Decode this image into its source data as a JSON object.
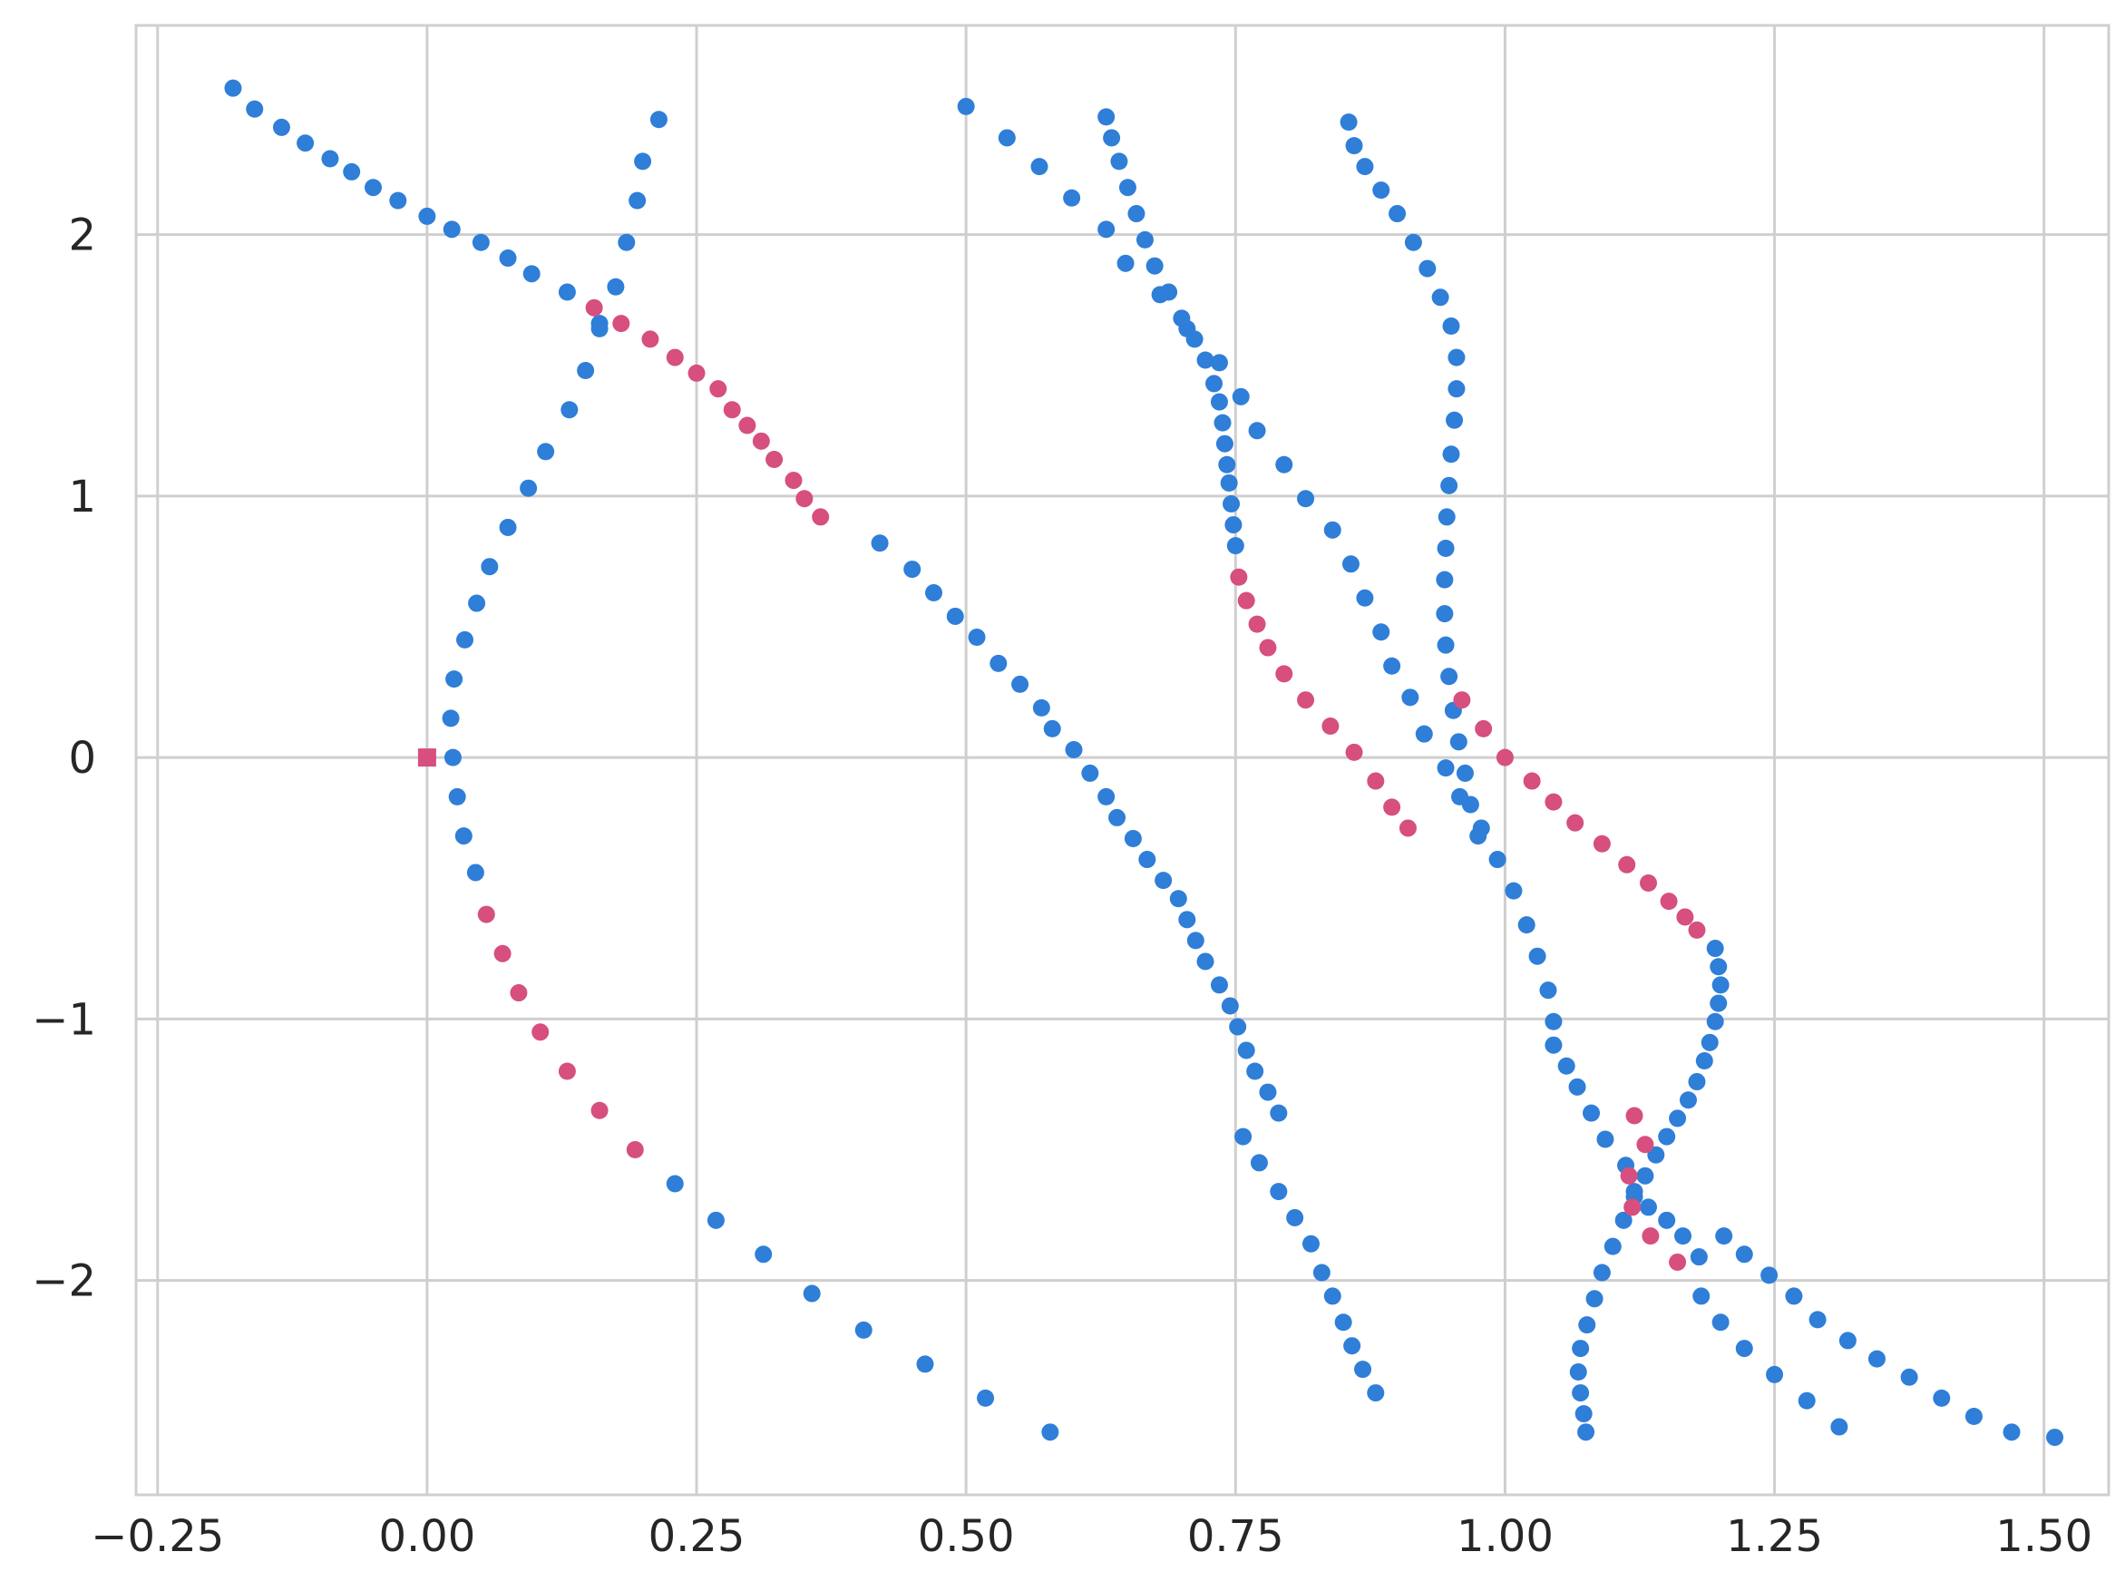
{
  "chart_data": {
    "type": "scatter",
    "title": "",
    "xlabel": "",
    "ylabel": "",
    "xlim": [
      -0.27,
      1.56
    ],
    "ylim": [
      -2.82,
      2.8
    ],
    "grid": true,
    "legend": "none",
    "x_ticks": [
      -0.25,
      0.0,
      0.25,
      0.5,
      0.75,
      1.0,
      1.25,
      1.5
    ],
    "x_tick_labels": [
      "−0.25",
      "0.00",
      "0.25",
      "0.50",
      "0.75",
      "1.00",
      "1.25",
      "1.50"
    ],
    "y_ticks": [
      -2,
      -1,
      0,
      1,
      2
    ],
    "y_tick_labels": [
      "−2",
      "−1",
      "0",
      "1",
      "2"
    ],
    "colors": {
      "blue": "#2f7ed8",
      "pink": "#d64f7e",
      "grid": "#cfcfcf",
      "text": "#262626"
    },
    "series": [
      {
        "color": "blue",
        "marker": "circle",
        "points": [
          [
            -0.18,
            2.56
          ],
          [
            -0.16,
            2.48
          ],
          [
            -0.135,
            2.41
          ],
          [
            -0.113,
            2.35
          ],
          [
            -0.09,
            2.29
          ],
          [
            -0.07,
            2.24
          ],
          [
            -0.05,
            2.18
          ],
          [
            -0.027,
            2.13
          ],
          [
            0.0,
            2.07
          ],
          [
            0.023,
            2.02
          ],
          [
            0.05,
            1.97
          ],
          [
            0.075,
            1.91
          ],
          [
            0.097,
            1.85
          ],
          [
            0.13,
            1.78
          ],
          [
            0.16,
            1.66
          ],
          [
            0.215,
            2.44
          ],
          [
            0.2,
            2.28
          ],
          [
            0.195,
            2.13
          ],
          [
            0.185,
            1.97
          ],
          [
            0.175,
            1.8
          ],
          [
            0.16,
            1.64
          ],
          [
            0.147,
            1.48
          ],
          [
            0.132,
            1.33
          ],
          [
            0.11,
            1.17
          ],
          [
            0.094,
            1.03
          ],
          [
            0.075,
            0.88
          ],
          [
            0.058,
            0.73
          ],
          [
            0.046,
            0.59
          ],
          [
            0.035,
            0.45
          ],
          [
            0.025,
            0.3
          ],
          [
            0.022,
            0.15
          ],
          [
            0.024,
            0.0
          ],
          [
            0.028,
            -0.15
          ],
          [
            0.034,
            -0.3
          ],
          [
            0.045,
            -0.44
          ],
          [
            0.23,
            -1.63
          ],
          [
            0.268,
            -1.77
          ],
          [
            0.312,
            -1.9
          ],
          [
            0.357,
            -2.05
          ],
          [
            0.405,
            -2.19
          ],
          [
            0.462,
            -2.32
          ],
          [
            0.518,
            -2.45
          ],
          [
            0.578,
            -2.58
          ],
          [
            0.5,
            2.49
          ],
          [
            0.538,
            2.37
          ],
          [
            0.568,
            2.26
          ],
          [
            0.598,
            2.14
          ],
          [
            0.63,
            2.02
          ],
          [
            0.648,
            1.89
          ],
          [
            0.68,
            1.77
          ],
          [
            0.705,
            1.64
          ],
          [
            0.735,
            1.51
          ],
          [
            0.755,
            1.38
          ],
          [
            0.77,
            1.25
          ],
          [
            0.795,
            1.12
          ],
          [
            0.815,
            0.99
          ],
          [
            0.84,
            0.87
          ],
          [
            0.857,
            0.74
          ],
          [
            0.87,
            0.61
          ],
          [
            0.885,
            0.48
          ],
          [
            0.895,
            0.35
          ],
          [
            0.912,
            0.23
          ],
          [
            0.925,
            0.09
          ],
          [
            0.945,
            -0.04
          ],
          [
            0.958,
            -0.15
          ],
          [
            0.978,
            -0.27
          ],
          [
            0.993,
            -0.39
          ],
          [
            1.008,
            -0.51
          ],
          [
            1.02,
            -0.64
          ],
          [
            1.03,
            -0.76
          ],
          [
            1.04,
            -0.89
          ],
          [
            1.045,
            -1.01
          ],
          [
            0.63,
            2.45
          ],
          [
            0.635,
            2.37
          ],
          [
            0.642,
            2.28
          ],
          [
            0.65,
            2.18
          ],
          [
            0.658,
            2.08
          ],
          [
            0.666,
            1.98
          ],
          [
            0.675,
            1.88
          ],
          [
            0.688,
            1.78
          ],
          [
            0.7,
            1.68
          ],
          [
            0.712,
            1.6
          ],
          [
            0.722,
            1.52
          ],
          [
            0.73,
            1.43
          ],
          [
            0.735,
            1.36
          ],
          [
            0.738,
            1.28
          ],
          [
            0.74,
            1.2
          ],
          [
            0.742,
            1.12
          ],
          [
            0.744,
            1.05
          ],
          [
            0.746,
            0.97
          ],
          [
            0.748,
            0.89
          ],
          [
            0.75,
            0.81
          ],
          [
            0.42,
            0.82
          ],
          [
            0.45,
            0.72
          ],
          [
            0.47,
            0.63
          ],
          [
            0.49,
            0.54
          ],
          [
            0.51,
            0.46
          ],
          [
            0.53,
            0.36
          ],
          [
            0.55,
            0.28
          ],
          [
            0.57,
            0.19
          ],
          [
            0.58,
            0.11
          ],
          [
            0.6,
            0.03
          ],
          [
            0.615,
            -0.06
          ],
          [
            0.63,
            -0.15
          ],
          [
            0.64,
            -0.23
          ],
          [
            0.655,
            -0.31
          ],
          [
            0.668,
            -0.39
          ],
          [
            0.683,
            -0.47
          ],
          [
            0.697,
            -0.54
          ],
          [
            0.705,
            -0.62
          ],
          [
            0.713,
            -0.7
          ],
          [
            0.722,
            -0.78
          ],
          [
            0.735,
            -0.87
          ],
          [
            0.745,
            -0.95
          ],
          [
            0.752,
            -1.03
          ],
          [
            0.76,
            -1.12
          ],
          [
            0.768,
            -1.2
          ],
          [
            0.78,
            -1.28
          ],
          [
            0.79,
            -1.36
          ],
          [
            0.757,
            -1.45
          ],
          [
            0.772,
            -1.55
          ],
          [
            0.79,
            -1.66
          ],
          [
            0.805,
            -1.76
          ],
          [
            0.82,
            -1.86
          ],
          [
            0.83,
            -1.97
          ],
          [
            0.84,
            -2.06
          ],
          [
            0.85,
            -2.16
          ],
          [
            0.858,
            -2.25
          ],
          [
            0.868,
            -2.34
          ],
          [
            0.88,
            -2.43
          ],
          [
            0.855,
            2.43
          ],
          [
            0.86,
            2.34
          ],
          [
            0.87,
            2.26
          ],
          [
            0.885,
            2.17
          ],
          [
            0.9,
            2.08
          ],
          [
            0.915,
            1.97
          ],
          [
            0.928,
            1.87
          ],
          [
            0.94,
            1.76
          ],
          [
            0.95,
            1.65
          ],
          [
            0.955,
            1.53
          ],
          [
            0.955,
            1.41
          ],
          [
            0.953,
            1.29
          ],
          [
            0.95,
            1.16
          ],
          [
            0.948,
            1.04
          ],
          [
            0.946,
            0.92
          ],
          [
            0.945,
            0.8
          ],
          [
            0.944,
            0.68
          ],
          [
            0.944,
            0.55
          ],
          [
            0.945,
            0.43
          ],
          [
            0.948,
            0.31
          ],
          [
            0.952,
            0.18
          ],
          [
            0.957,
            0.06
          ],
          [
            0.963,
            -0.06
          ],
          [
            0.968,
            -0.18
          ],
          [
            0.975,
            -0.3
          ],
          [
            1.045,
            -1.1
          ],
          [
            1.057,
            -1.18
          ],
          [
            1.067,
            -1.26
          ],
          [
            1.08,
            -1.36
          ],
          [
            1.093,
            -1.46
          ],
          [
            1.112,
            -1.56
          ],
          [
            1.12,
            -1.66
          ],
          [
            1.133,
            -1.72
          ],
          [
            1.15,
            -1.77
          ],
          [
            1.165,
            -1.83
          ],
          [
            1.18,
            -1.91
          ],
          [
            1.203,
            -1.83
          ],
          [
            1.222,
            -1.9
          ],
          [
            1.245,
            -1.98
          ],
          [
            1.268,
            -2.06
          ],
          [
            1.29,
            -2.15
          ],
          [
            1.318,
            -2.23
          ],
          [
            1.345,
            -2.3
          ],
          [
            1.375,
            -2.37
          ],
          [
            1.405,
            -2.45
          ],
          [
            1.435,
            -2.52
          ],
          [
            1.47,
            -2.58
          ],
          [
            1.182,
            -2.06
          ],
          [
            1.2,
            -2.16
          ],
          [
            1.222,
            -2.26
          ],
          [
            1.25,
            -2.36
          ],
          [
            1.28,
            -2.46
          ],
          [
            1.31,
            -2.56
          ],
          [
            1.195,
            -0.73
          ],
          [
            1.198,
            -0.8
          ],
          [
            1.2,
            -0.87
          ],
          [
            1.198,
            -0.94
          ],
          [
            1.195,
            -1.01
          ],
          [
            1.19,
            -1.09
          ],
          [
            1.185,
            -1.16
          ],
          [
            1.178,
            -1.24
          ],
          [
            1.17,
            -1.31
          ],
          [
            1.16,
            -1.38
          ],
          [
            1.15,
            -1.45
          ],
          [
            1.14,
            -1.52
          ],
          [
            1.13,
            -1.6
          ],
          [
            1.12,
            -1.68
          ],
          [
            1.11,
            -1.77
          ],
          [
            1.1,
            -1.87
          ],
          [
            1.09,
            -1.97
          ],
          [
            1.083,
            -2.07
          ],
          [
            1.076,
            -2.17
          ],
          [
            1.07,
            -2.26
          ],
          [
            1.068,
            -2.35
          ],
          [
            1.07,
            -2.43
          ],
          [
            1.073,
            -2.51
          ],
          [
            1.075,
            -2.58
          ],
          [
            1.51,
            -2.6
          ]
        ]
      },
      {
        "color": "pink",
        "marker": "circle",
        "points": [
          [
            0.155,
            1.72
          ],
          [
            0.18,
            1.66
          ],
          [
            0.207,
            1.6
          ],
          [
            0.23,
            1.53
          ],
          [
            0.25,
            1.47
          ],
          [
            0.27,
            1.41
          ],
          [
            0.283,
            1.33
          ],
          [
            0.297,
            1.27
          ],
          [
            0.31,
            1.21
          ],
          [
            0.322,
            1.14
          ],
          [
            0.34,
            1.06
          ],
          [
            0.35,
            0.99
          ],
          [
            0.365,
            0.92
          ],
          [
            0.055,
            -0.6
          ],
          [
            0.07,
            -0.75
          ],
          [
            0.085,
            -0.9
          ],
          [
            0.105,
            -1.05
          ],
          [
            0.13,
            -1.2
          ],
          [
            0.16,
            -1.35
          ],
          [
            0.193,
            -1.5
          ],
          [
            0.753,
            0.69
          ],
          [
            0.76,
            0.6
          ],
          [
            0.77,
            0.51
          ],
          [
            0.78,
            0.42
          ],
          [
            0.795,
            0.32
          ],
          [
            0.815,
            0.22
          ],
          [
            0.838,
            0.12
          ],
          [
            0.86,
            0.02
          ],
          [
            0.88,
            -0.09
          ],
          [
            0.895,
            -0.19
          ],
          [
            0.91,
            -0.27
          ],
          [
            0.96,
            0.22
          ],
          [
            0.98,
            0.11
          ],
          [
            1.0,
            0.0
          ],
          [
            1.025,
            -0.09
          ],
          [
            1.045,
            -0.17
          ],
          [
            1.065,
            -0.25
          ],
          [
            1.09,
            -0.33
          ],
          [
            1.113,
            -0.41
          ],
          [
            1.133,
            -0.48
          ],
          [
            1.152,
            -0.55
          ],
          [
            1.167,
            -0.61
          ],
          [
            1.178,
            -0.66
          ],
          [
            1.12,
            -1.37
          ],
          [
            1.13,
            -1.48
          ],
          [
            1.115,
            -1.6
          ],
          [
            1.118,
            -1.72
          ],
          [
            1.135,
            -1.83
          ],
          [
            1.16,
            -1.93
          ]
        ]
      },
      {
        "color": "pink",
        "marker": "square",
        "points": [
          [
            0.0,
            0.0
          ]
        ]
      }
    ]
  }
}
